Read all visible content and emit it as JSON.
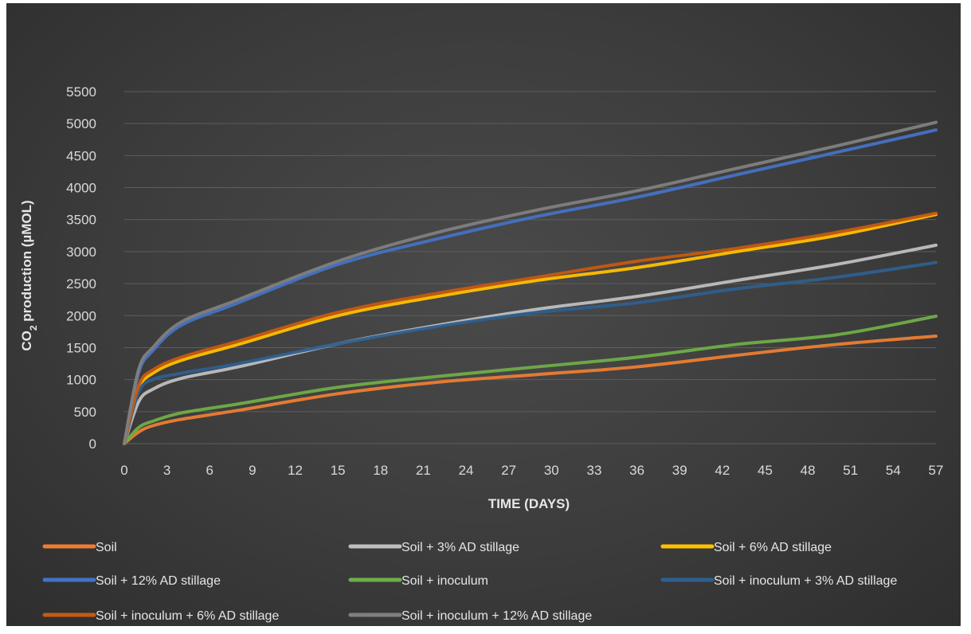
{
  "chart_data": {
    "type": "line",
    "title": "",
    "xlabel": "TIME (DAYS)",
    "ylabel_main": "CO",
    "ylabel_sub": "2",
    "ylabel_rest": " production (µMOL)",
    "xlim": [
      0,
      57
    ],
    "ylim": [
      0,
      5500
    ],
    "x_ticks": [
      "0",
      "3",
      "6",
      "9",
      "12",
      "15",
      "18",
      "21",
      "24",
      "27",
      "30",
      "33",
      "36",
      "39",
      "42",
      "45",
      "48",
      "51",
      "54",
      "57"
    ],
    "y_ticks": [
      "0",
      "500",
      "1000",
      "1500",
      "2000",
      "2500",
      "3000",
      "3500",
      "4000",
      "4500",
      "5000",
      "5500"
    ],
    "grid": "horizontal",
    "legend_position": "bottom",
    "series": [
      {
        "name": "Soil",
        "color": "#ed7d31",
        "x": [
          0,
          1,
          2,
          4,
          8,
          15,
          22,
          29,
          36,
          43,
          50,
          57
        ],
        "y": [
          0,
          180,
          280,
          380,
          520,
          780,
          960,
          1080,
          1200,
          1380,
          1550,
          1680
        ]
      },
      {
        "name": "Soil + 3% AD stillage",
        "color": "#bfbfbf",
        "x": [
          0,
          1,
          2,
          4,
          8,
          15,
          22,
          29,
          36,
          43,
          50,
          57
        ],
        "y": [
          0,
          650,
          850,
          1020,
          1200,
          1560,
          1850,
          2100,
          2300,
          2550,
          2800,
          3100
        ]
      },
      {
        "name": "Soil + 6% AD stillage",
        "color": "#ffc000",
        "x": [
          0,
          1,
          2,
          4,
          8,
          15,
          22,
          29,
          36,
          43,
          50,
          57
        ],
        "y": [
          0,
          850,
          1100,
          1300,
          1550,
          2000,
          2300,
          2550,
          2750,
          3000,
          3250,
          3580
        ]
      },
      {
        "name": "Soil + 12% AD stillage",
        "color": "#4472c4",
        "x": [
          0,
          1,
          2,
          4,
          8,
          15,
          22,
          29,
          36,
          43,
          50,
          57
        ],
        "y": [
          0,
          1100,
          1450,
          1850,
          2200,
          2800,
          3200,
          3550,
          3850,
          4200,
          4550,
          4900
        ]
      },
      {
        "name": "Soil + inoculum",
        "color": "#70ad47",
        "x": [
          0,
          1,
          2,
          4,
          8,
          15,
          22,
          29,
          36,
          43,
          50,
          57
        ],
        "y": [
          0,
          250,
          350,
          480,
          620,
          880,
          1050,
          1200,
          1350,
          1550,
          1700,
          1990
        ]
      },
      {
        "name": "Soil + inoculum + 3% AD stillage",
        "color": "#2e5f8f",
        "x": [
          0,
          1,
          2,
          4,
          8,
          15,
          22,
          29,
          36,
          43,
          50,
          57
        ],
        "y": [
          0,
          800,
          1000,
          1100,
          1250,
          1560,
          1830,
          2050,
          2200,
          2420,
          2600,
          2830
        ]
      },
      {
        "name": "Soil + inoculum + 6% AD stillage",
        "color": "#c55a11",
        "x": [
          0,
          1,
          2,
          4,
          8,
          15,
          22,
          29,
          36,
          43,
          50,
          57
        ],
        "y": [
          0,
          900,
          1150,
          1350,
          1600,
          2050,
          2350,
          2600,
          2850,
          3050,
          3300,
          3600
        ]
      },
      {
        "name": "Soil + inoculum + 12% AD stillage",
        "color": "#7f7f7f",
        "x": [
          0,
          1,
          2,
          4,
          8,
          15,
          22,
          29,
          36,
          43,
          50,
          57
        ],
        "y": [
          0,
          1150,
          1500,
          1900,
          2250,
          2850,
          3300,
          3650,
          3950,
          4300,
          4650,
          5020
        ]
      }
    ]
  }
}
